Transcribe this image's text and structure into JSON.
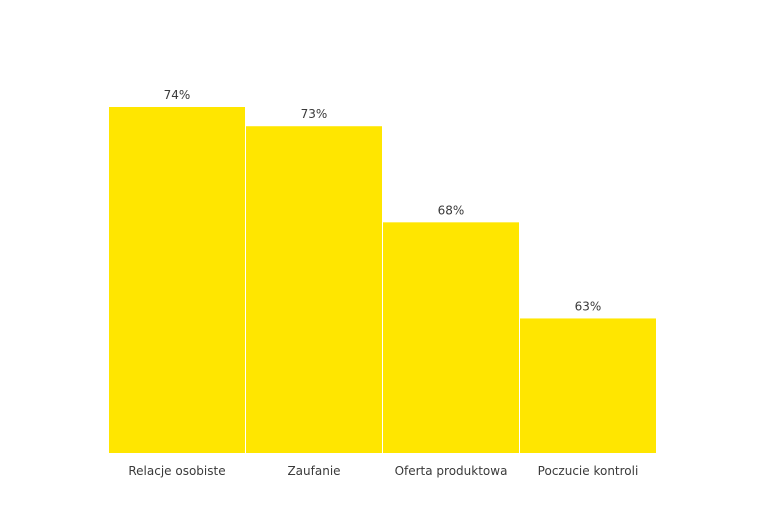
{
  "chart_data": {
    "type": "bar",
    "categories": [
      "Relacje osobiste",
      "Zaufanie",
      "Oferta produktowa",
      "Poczucie kontroli"
    ],
    "values": [
      74,
      73,
      68,
      63
    ],
    "value_labels": [
      "74%",
      "73%",
      "68%",
      "63%"
    ],
    "unit": "%",
    "ylim": [
      56,
      74
    ],
    "grid": false,
    "legend": "none",
    "bar_color": "#FFE600",
    "text_color": "#3a3a3a"
  }
}
